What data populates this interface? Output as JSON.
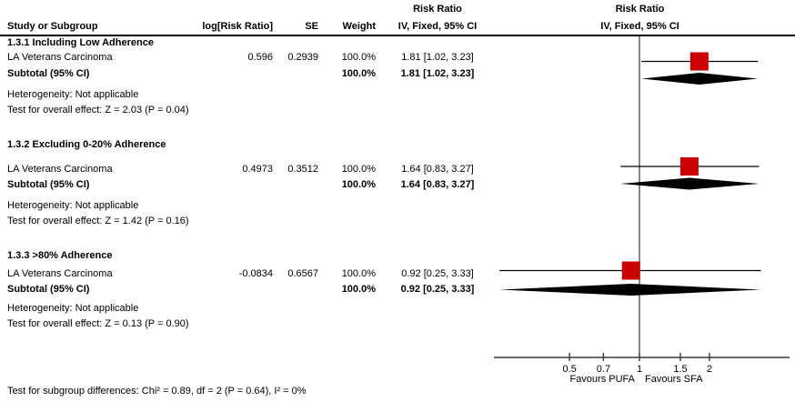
{
  "chart_data": {
    "type": "forest",
    "effect_measure": "Risk Ratio",
    "method": "IV, Fixed, 95% CI",
    "columns": {
      "study": "Study or Subgroup",
      "log_rr": "log[Risk Ratio]",
      "se": "SE",
      "weight": "Weight",
      "rr_header_line1": "Risk Ratio",
      "rr_header_line2": "IV, Fixed, 95% CI",
      "plot_header_line1": "Risk Ratio",
      "plot_header_line2": "IV, Fixed, 95% CI"
    },
    "subgroups": [
      {
        "heading": "1.3.1 Including Low Adherence",
        "study": {
          "name": "LA Veterans Carcinoma",
          "log_rr": "0.596",
          "se": "0.2939",
          "weight": "100.0%",
          "ci_text": "1.81 [1.02, 3.23]",
          "estimate": 1.81,
          "low": 1.02,
          "high": 3.23
        },
        "subtotal": {
          "label": "Subtotal (95% CI)",
          "weight": "100.0%",
          "ci_text": "1.81 [1.02, 3.23]",
          "estimate": 1.81,
          "low": 1.02,
          "high": 3.23
        },
        "heterogeneity": "Heterogeneity: Not applicable",
        "overall_effect": "Test for overall effect: Z = 2.03 (P = 0.04)"
      },
      {
        "heading": "1.3.2 Excluding 0-20% Adherence",
        "study": {
          "name": "LA Veterans Carcinoma",
          "log_rr": "0.4973",
          "se": "0.3512",
          "weight": "100.0%",
          "ci_text": "1.64 [0.83, 3.27]",
          "estimate": 1.64,
          "low": 0.83,
          "high": 3.27
        },
        "subtotal": {
          "label": "Subtotal (95% CI)",
          "weight": "100.0%",
          "ci_text": "1.64 [0.83, 3.27]",
          "estimate": 1.64,
          "low": 0.83,
          "high": 3.27
        },
        "heterogeneity": "Heterogeneity: Not applicable",
        "overall_effect": "Test for overall effect: Z = 1.42 (P = 0.16)"
      },
      {
        "heading": "1.3.3 >80% Adherence",
        "study": {
          "name": "LA Veterans Carcinoma",
          "log_rr": "-0.0834",
          "se": "0.6567",
          "weight": "100.0%",
          "ci_text": "0.92 [0.25, 3.33]",
          "estimate": 0.92,
          "low": 0.25,
          "high": 3.33
        },
        "subtotal": {
          "label": "Subtotal (95% CI)",
          "weight": "100.0%",
          "ci_text": "0.92 [0.25, 3.33]",
          "estimate": 0.92,
          "low": 0.25,
          "high": 3.33
        },
        "heterogeneity": "Heterogeneity: Not applicable",
        "overall_effect": "Test for overall effect: Z = 0.13 (P = 0.90)"
      }
    ],
    "axis": {
      "scale": "log",
      "null_value": 1,
      "ticks": [
        0.5,
        0.7,
        1,
        1.5,
        2
      ],
      "tick_labels": [
        "0.5",
        "0.7",
        "1",
        "1.5",
        "2"
      ],
      "favours_left": "Favours PUFA",
      "favours_right": "Favours SFA"
    },
    "footer": "Test for subgroup differences: Chi² = 0.89, df = 2 (P = 0.64), I² = 0%",
    "colors": {
      "marker": "#CC0000",
      "diamond": "#000000",
      "axis": "#3a3a3a",
      "ci": "#000000"
    }
  }
}
